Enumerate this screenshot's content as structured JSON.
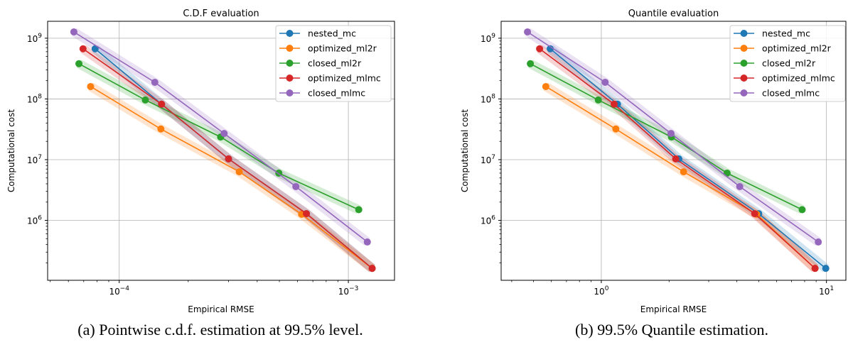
{
  "chart_data": [
    {
      "type": "line",
      "title": "C.D.F evaluation",
      "caption": "(a) Pointwise c.d.f. estimation at 99.5% level.",
      "xlabel": "Empirical RMSE",
      "ylabel": "Computational cost",
      "xscale": "log",
      "yscale": "log",
      "xlim": [
        4.87e-05,
        0.00159
      ],
      "ylim": [
        103000.0,
        1900000000.0
      ],
      "xticks": [
        {
          "value": 0.0001,
          "label": "10",
          "exp": "−4"
        },
        {
          "value": 0.001,
          "label": "10",
          "exp": "−3"
        }
      ],
      "yticks": [
        {
          "value": 1000000.0,
          "label": "10",
          "exp": "6"
        },
        {
          "value": 10000000.0,
          "label": "10",
          "exp": "7"
        },
        {
          "value": 100000000.0,
          "label": "10",
          "exp": "8"
        },
        {
          "value": 1000000000.0,
          "label": "10",
          "exp": "9"
        }
      ],
      "grid": true,
      "legend_position": "top-right",
      "series": [
        {
          "name": "nested_mc",
          "color": "#1f77b4",
          "x": [
            7.85e-05,
            0.000153,
            0.0003,
            0.000656,
            0.00127
          ],
          "y": [
            670000000.0,
            82000000.0,
            10300000.0,
            1290000.0,
            162000.0
          ]
        },
        {
          "name": "optimized_ml2r",
          "color": "#ff7f0e",
          "x": [
            7.5e-05,
            0.000152,
            0.000334,
            0.000625,
            0.00127
          ],
          "y": [
            160000000.0,
            32000000.0,
            6300000.0,
            1260000.0,
            162000.0
          ]
        },
        {
          "name": "closed_ml2r",
          "color": "#2ca02c",
          "x": [
            6.67e-05,
            0.00013,
            0.000277,
            0.000497,
            0.00111
          ],
          "y": [
            380000000.0,
            96000000.0,
            23600000.0,
            6000000.0,
            1500000.0
          ]
        },
        {
          "name": "optimized_mlmc",
          "color": "#d62728",
          "x": [
            6.95e-05,
            0.000153,
            0.0003,
            0.000656,
            0.00127
          ],
          "y": [
            670000000.0,
            82000000.0,
            10300000.0,
            1290000.0,
            162000.0
          ]
        },
        {
          "name": "closed_mlmc",
          "color": "#9467bd",
          "x": [
            6.34e-05,
            0.000143,
            0.000287,
            0.00059,
            0.00121
          ],
          "y": [
            1270000000.0,
            188000000.0,
            27000000.0,
            3600000.0,
            440000.0
          ]
        }
      ]
    },
    {
      "type": "line",
      "title": "Quantile evaluation",
      "caption": "(b) 99.5% Quantile estimation.",
      "xlabel": "Empirical RMSE",
      "ylabel": "Computational cost",
      "xscale": "log",
      "yscale": "log",
      "xlim": [
        0.359,
        12.2
      ],
      "ylim": [
        103000.0,
        1900000000.0
      ],
      "xticks": [
        {
          "value": 1,
          "label": "10",
          "exp": "0"
        },
        {
          "value": 10,
          "label": "10",
          "exp": "1"
        }
      ],
      "yticks": [
        {
          "value": 1000000.0,
          "label": "10",
          "exp": "6"
        },
        {
          "value": 10000000.0,
          "label": "10",
          "exp": "7"
        },
        {
          "value": 100000000.0,
          "label": "10",
          "exp": "8"
        },
        {
          "value": 1000000000.0,
          "label": "10",
          "exp": "9"
        }
      ],
      "grid": true,
      "legend_position": "top-right",
      "series": [
        {
          "name": "nested_mc",
          "color": "#1f77b4",
          "x": [
            0.593,
            1.18,
            2.21,
            5.0,
            9.93
          ],
          "y": [
            670000000.0,
            82000000.0,
            10300000.0,
            1290000.0,
            162000.0
          ]
        },
        {
          "name": "optimized_ml2r",
          "color": "#ff7f0e",
          "x": [
            0.567,
            1.16,
            2.32,
            4.9,
            8.9
          ],
          "y": [
            160000000.0,
            32000000.0,
            6300000.0,
            1260000.0,
            162000.0
          ]
        },
        {
          "name": "closed_ml2r",
          "color": "#2ca02c",
          "x": [
            0.484,
            0.97,
            2.05,
            3.62,
            7.8
          ],
          "y": [
            380000000.0,
            96000000.0,
            23600000.0,
            6000000.0,
            1500000.0
          ]
        },
        {
          "name": "optimized_mlmc",
          "color": "#d62728",
          "x": [
            0.532,
            1.14,
            2.14,
            4.8,
            8.9
          ],
          "y": [
            670000000.0,
            82000000.0,
            10300000.0,
            1290000.0,
            162000.0
          ]
        },
        {
          "name": "closed_mlmc",
          "color": "#9467bd",
          "x": [
            0.47,
            1.04,
            2.04,
            4.12,
            9.2
          ],
          "y": [
            1270000000.0,
            188000000.0,
            27000000.0,
            3600000.0,
            440000.0
          ]
        }
      ]
    }
  ]
}
